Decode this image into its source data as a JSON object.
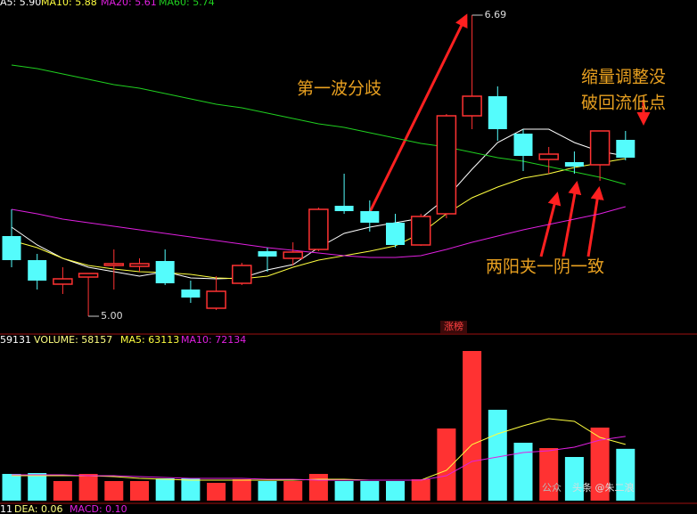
{
  "chart_data": {
    "type": "candlestick",
    "up_color": "#ff3232",
    "down_color": "#54fcfc",
    "ylim": [
      4.975,
      6.725
    ],
    "open": [
      5.45,
      5.315,
      5.18,
      5.22,
      5.285,
      5.28,
      5.31,
      5.15,
      5.045,
      5.185,
      5.365,
      5.325,
      5.375,
      5.62,
      5.59,
      5.525,
      5.4,
      5.575,
      6.125,
      6.235,
      6.025,
      5.88,
      5.865,
      5.85,
      5.99
    ],
    "high": [
      5.6,
      5.35,
      5.275,
      5.24,
      5.375,
      5.325,
      5.375,
      5.2,
      5.225,
      5.3,
      5.385,
      5.415,
      5.61,
      5.8,
      5.65,
      5.575,
      5.575,
      6.135,
      6.69,
      6.29,
      6.05,
      5.95,
      5.925,
      6.04,
      6.04
    ],
    "low": [
      5.275,
      5.15,
      5.125,
      5.0,
      5.15,
      5.25,
      5.175,
      5.075,
      5.035,
      5.175,
      5.25,
      5.285,
      5.365,
      5.575,
      5.475,
      5.385,
      5.395,
      5.55,
      6.05,
      5.985,
      5.815,
      5.8,
      5.8,
      5.76,
      5.875
    ],
    "close": [
      5.315,
      5.2,
      5.21,
      5.24,
      5.295,
      5.295,
      5.185,
      5.105,
      5.14,
      5.285,
      5.335,
      5.36,
      5.6,
      5.59,
      5.525,
      5.4,
      5.56,
      6.125,
      6.235,
      6.05,
      5.9,
      5.91,
      5.84,
      6.04,
      5.89
    ],
    "series": [
      {
        "name": "MA5",
        "color": "#ffffff",
        "values": [
          5.5,
          5.4,
          5.325,
          5.275,
          5.25,
          5.225,
          5.25,
          5.215,
          5.21,
          5.215,
          5.26,
          5.29,
          5.385,
          5.465,
          5.5,
          5.525,
          5.55,
          5.665,
          5.825,
          5.975,
          6.05,
          6.05,
          5.975,
          5.925,
          5.9
        ]
      },
      {
        "name": "MA10",
        "color": "#ffff40",
        "values": [
          5.425,
          5.385,
          5.325,
          5.285,
          5.265,
          5.25,
          5.245,
          5.235,
          5.215,
          5.21,
          5.225,
          5.275,
          5.315,
          5.34,
          5.365,
          5.395,
          5.465,
          5.575,
          5.665,
          5.725,
          5.775,
          5.8,
          5.835,
          5.86,
          5.885
        ]
      },
      {
        "name": "MA20",
        "color": "#e020e0",
        "values": [
          5.6,
          5.575,
          5.545,
          5.525,
          5.505,
          5.485,
          5.465,
          5.445,
          5.425,
          5.405,
          5.385,
          5.37,
          5.355,
          5.34,
          5.33,
          5.33,
          5.34,
          5.375,
          5.415,
          5.45,
          5.485,
          5.515,
          5.545,
          5.575,
          5.615
        ]
      },
      {
        "name": "MA60",
        "color": "#20d020",
        "values": [
          6.41,
          6.39,
          6.36,
          6.33,
          6.3,
          6.28,
          6.25,
          6.22,
          6.19,
          6.17,
          6.14,
          6.11,
          6.08,
          6.06,
          6.03,
          6.0,
          5.97,
          5.95,
          5.92,
          5.89,
          5.87,
          5.84,
          5.81,
          5.78,
          5.74
        ]
      }
    ],
    "max_label": 6.69,
    "min_label": {
      "value": 5.0,
      "label": "5.00"
    },
    "header": [
      {
        "text": "A5: 5.90",
        "color": "#ffffff"
      },
      {
        "text": "MA10: 5.88",
        "color": "#ffff40"
      },
      {
        "text": "MA20: 5.61",
        "color": "#e020e0"
      },
      {
        "text": "MA60: 5.74",
        "color": "#20d020"
      }
    ],
    "tag": "涨榜",
    "annotations": [
      {
        "text": "第一波分歧",
        "color": "#e8a020"
      },
      {
        "text": "缩量调整没",
        "color": "#e8a020"
      },
      {
        "text": "破回流低点",
        "color": "#e8a020"
      },
      {
        "text": "两阳夹一阴一致",
        "color": "#e8a020"
      }
    ],
    "volume": {
      "ylim": [
        0,
        170000
      ],
      "values": [
        30000,
        31000,
        22000,
        30000,
        22000,
        22000,
        25000,
        25000,
        20000,
        24000,
        22000,
        22000,
        30000,
        22000,
        22000,
        22000,
        24000,
        81000,
        168000,
        102000,
        65000,
        59000,
        49000,
        82000,
        58157
      ],
      "series": [
        {
          "name": "MA5",
          "color": "#ffff40",
          "values": [
            28000,
            28000,
            28000,
            28000,
            27000,
            25000,
            24000,
            23000,
            23000,
            23000,
            23000,
            23000,
            24000,
            24000,
            23000,
            23000,
            23000,
            34000,
            63000,
            75000,
            84000,
            92000,
            89000,
            71000,
            63113
          ]
        },
        {
          "name": "MA10",
          "color": "#e020e0",
          "values": [
            29000,
            29000,
            29000,
            28000,
            28000,
            27000,
            26000,
            25000,
            25000,
            25000,
            24000,
            24000,
            23000,
            23000,
            23000,
            23000,
            23000,
            28000,
            44000,
            49000,
            54000,
            56000,
            60000,
            68000,
            72134
          ]
        }
      ],
      "header": [
        {
          "text": "59131",
          "color": "#ffffff"
        },
        {
          "text": "VOLUME: 58157",
          "color": "#ffff80"
        },
        {
          "text": "MA5: 63113",
          "color": "#ffff40"
        },
        {
          "text": "MA10: 72134",
          "color": "#e020e0"
        }
      ]
    },
    "macd_header": [
      {
        "text": "11",
        "color": "#ffffff"
      },
      {
        "text": "DEA: 0.06",
        "color": "#ffff80"
      },
      {
        "text": "MACD: 0.10",
        "color": "#e020e0"
      }
    ],
    "watermark": [
      "公众",
      "头条 @朱二浪"
    ]
  }
}
